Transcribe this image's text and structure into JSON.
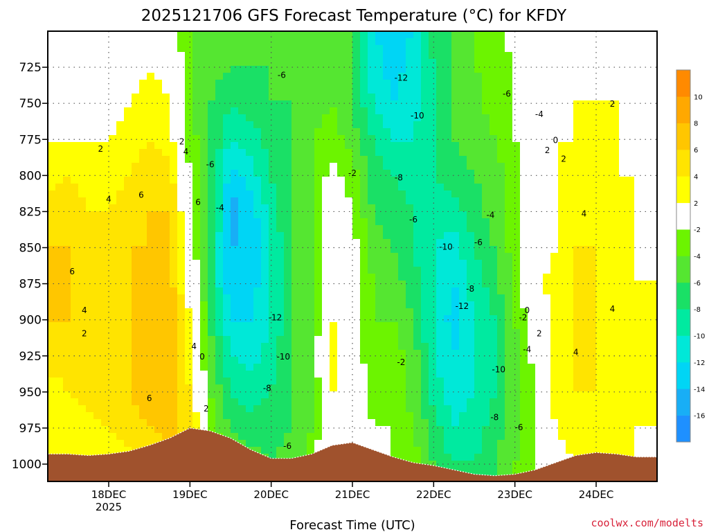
{
  "chart_data": {
    "type": "heatmap",
    "title": "2025121706 GFS Forecast Temperature (°C) for KFDY",
    "xlabel": "Forecast Time (UTC)",
    "ylabel": "",
    "credit": "coolwx.com/modelts",
    "x_ticks": [
      {
        "label": "18DEC",
        "sub": "2025",
        "day": 18
      },
      {
        "label": "19DEC",
        "sub": "",
        "day": 19
      },
      {
        "label": "20DEC",
        "sub": "",
        "day": 20
      },
      {
        "label": "21DEC",
        "sub": "",
        "day": 21
      },
      {
        "label": "22DEC",
        "sub": "",
        "day": 22
      },
      {
        "label": "23DEC",
        "sub": "",
        "day": 23
      },
      {
        "label": "24DEC",
        "sub": "",
        "day": 24
      }
    ],
    "xlim": [
      17.25,
      24.75
    ],
    "y_ticks": [
      725,
      750,
      775,
      800,
      825,
      850,
      875,
      900,
      925,
      950,
      975,
      1000
    ],
    "y_tick_labels": [
      "725",
      "750",
      "775",
      "800",
      "825",
      "850",
      "875",
      "900",
      "925",
      "950",
      "975",
      "1000"
    ],
    "ylim": [
      700,
      1012
    ],
    "y_reversed": true,
    "y_unit": "hPa",
    "grid": true,
    "colorbar": {
      "placement": "right",
      "boundaries": [
        -18,
        -16,
        -14,
        -12,
        -10,
        -8,
        -6,
        -4,
        -2,
        2,
        4,
        6,
        8,
        10,
        12
      ],
      "tick_labels": [
        "-16",
        "-14",
        "-12",
        "-10",
        "-8",
        "-6",
        "-4",
        "-2",
        "2",
        "4",
        "6",
        "8",
        "10"
      ],
      "colors": [
        "#1e90ff",
        "#18aef6",
        "#00d5f5",
        "#00e8d8",
        "#00eaa0",
        "#1ae066",
        "#55e631",
        "#6cf400",
        "#ffffff",
        "#ffff00",
        "#ffe400",
        "#ffc600",
        "#ffa800",
        "#ff8a00"
      ]
    },
    "levels": [
      1000,
      975,
      950,
      925,
      900,
      875,
      850,
      825,
      800,
      775,
      750,
      725,
      700
    ],
    "series": [
      {
        "x": 17.25,
        "values": [
          4,
          2,
          3,
          5,
          6,
          6,
          6,
          5,
          3,
          2,
          0,
          -1,
          -2
        ]
      },
      {
        "x": 17.5,
        "values": [
          3,
          2,
          4,
          5,
          6,
          6,
          6,
          5,
          4,
          2,
          1,
          0,
          -1
        ]
      },
      {
        "x": 17.75,
        "values": [
          2,
          3,
          5,
          6,
          5,
          5,
          4,
          4,
          3,
          2,
          1,
          0,
          -1
        ]
      },
      {
        "x": 18.0,
        "values": [
          3,
          4,
          6,
          5,
          5,
          5,
          4,
          4,
          3,
          2,
          1,
          0,
          0
        ]
      },
      {
        "x": 18.25,
        "values": [
          3,
          5,
          6,
          6,
          6,
          6,
          6,
          5,
          4,
          3,
          2,
          1,
          0
        ]
      },
      {
        "x": 18.5,
        "values": [
          4,
          6,
          7,
          7,
          7,
          7,
          6,
          6,
          5,
          4,
          3,
          2,
          1
        ]
      },
      {
        "x": 18.75,
        "values": [
          5,
          7,
          8,
          8,
          8,
          7,
          6,
          6,
          5,
          3,
          2,
          1,
          0
        ]
      },
      {
        "x": 19.0,
        "values": [
          6,
          5,
          4,
          3,
          2,
          1,
          0,
          -1,
          -2,
          -3,
          -4,
          -4,
          -4
        ]
      },
      {
        "x": 19.25,
        "values": [
          -1,
          -3,
          -4,
          -5,
          -6,
          -7,
          -7,
          -6,
          -6,
          -6,
          -6,
          -5,
          -5
        ]
      },
      {
        "x": 19.5,
        "values": [
          -4,
          -6,
          -8,
          -10,
          -12,
          -14,
          -14,
          -15,
          -13,
          -10,
          -8,
          -6,
          -5
        ]
      },
      {
        "x": 19.75,
        "values": [
          -5,
          -7,
          -9,
          -11,
          -12,
          -13,
          -14,
          -13,
          -11,
          -9,
          -7,
          -6,
          -5
        ]
      },
      {
        "x": 20.0,
        "values": [
          -6,
          -7,
          -8,
          -9,
          -10,
          -10,
          -10,
          -9,
          -8,
          -7,
          -6,
          -6,
          -5
        ]
      },
      {
        "x": 20.25,
        "values": [
          -5,
          -6,
          -6,
          -6,
          -6,
          -6,
          -6,
          -6,
          -6,
          -6,
          -6,
          -6,
          -6
        ]
      },
      {
        "x": 20.5,
        "values": [
          -3,
          -4,
          -4,
          -4,
          -4,
          -4,
          -4,
          -4,
          -4,
          -4,
          -5,
          -5,
          -5
        ]
      },
      {
        "x": 20.75,
        "values": [
          1,
          2,
          2,
          3,
          2,
          1,
          1,
          0,
          -1,
          -3,
          -4,
          -4,
          -5
        ]
      },
      {
        "x": 21.0,
        "values": [
          1,
          2,
          1,
          0,
          0,
          0,
          -1,
          -2,
          -3,
          -5,
          -6,
          -6,
          -6
        ]
      },
      {
        "x": 21.25,
        "values": [
          0,
          -2,
          -3,
          -4,
          -4,
          -4,
          -5,
          -6,
          -7,
          -8,
          -10,
          -11,
          -12
        ]
      },
      {
        "x": 21.5,
        "values": [
          -2,
          -2,
          -3,
          -3,
          -4,
          -5,
          -6,
          -7,
          -8,
          -10,
          -12,
          -13,
          -13
        ]
      },
      {
        "x": 21.75,
        "values": [
          -3,
          -4,
          -5,
          -5,
          -6,
          -7,
          -8,
          -8,
          -9,
          -10,
          -11,
          -11,
          -12
        ]
      },
      {
        "x": 22.0,
        "values": [
          -6,
          -7,
          -9,
          -10,
          -10,
          -10,
          -10,
          -9,
          -8,
          -8,
          -8,
          -8,
          -7
        ]
      },
      {
        "x": 22.25,
        "values": [
          -8,
          -10,
          -11,
          -12,
          -13,
          -12,
          -11,
          -9,
          -7,
          -6,
          -6,
          -6,
          -6
        ]
      },
      {
        "x": 22.5,
        "values": [
          -8,
          -9,
          -10,
          -10,
          -10,
          -9,
          -8,
          -7,
          -6,
          -5,
          -5,
          -4,
          -4
        ]
      },
      {
        "x": 22.75,
        "values": [
          -6,
          -7,
          -8,
          -8,
          -8,
          -7,
          -6,
          -5,
          -5,
          -4,
          -3,
          -3,
          -3
        ]
      },
      {
        "x": 23.0,
        "values": [
          -4,
          -5,
          -5,
          -5,
          -4,
          -3,
          -3,
          -3,
          -3,
          -2,
          -2,
          -2,
          -1
        ]
      },
      {
        "x": 23.25,
        "values": [
          -2,
          -2,
          -2,
          -1,
          0,
          1,
          1,
          0,
          0,
          0,
          0,
          0,
          0
        ]
      },
      {
        "x": 23.5,
        "values": [
          1,
          2,
          3,
          3,
          3,
          3,
          2,
          2,
          2,
          2,
          1,
          1,
          0
        ]
      },
      {
        "x": 23.75,
        "values": [
          2,
          3,
          4,
          4,
          4,
          4,
          4,
          3,
          3,
          2,
          2,
          1,
          0
        ]
      },
      {
        "x": 24.0,
        "values": [
          2,
          3,
          4,
          4,
          4,
          4,
          4,
          4,
          3,
          3,
          2,
          2,
          1
        ]
      },
      {
        "x": 24.25,
        "values": [
          2,
          3,
          3,
          3,
          3,
          3,
          3,
          3,
          2,
          2,
          2,
          1,
          0
        ]
      },
      {
        "x": 24.5,
        "values": [
          2,
          2,
          2,
          2,
          2,
          2,
          2,
          2,
          2,
          1,
          1,
          0,
          -1
        ]
      },
      {
        "x": 24.75,
        "values": [
          1,
          2,
          2,
          2,
          2,
          2,
          1,
          1,
          1,
          1,
          0,
          0,
          -1
        ]
      }
    ],
    "surface_pressure": [
      {
        "x": 17.25,
        "p": 993
      },
      {
        "x": 17.5,
        "p": 993
      },
      {
        "x": 17.75,
        "p": 994
      },
      {
        "x": 18.0,
        "p": 993
      },
      {
        "x": 18.25,
        "p": 991
      },
      {
        "x": 18.5,
        "p": 987
      },
      {
        "x": 18.75,
        "p": 982
      },
      {
        "x": 19.0,
        "p": 975
      },
      {
        "x": 19.25,
        "p": 977
      },
      {
        "x": 19.5,
        "p": 982
      },
      {
        "x": 19.75,
        "p": 990
      },
      {
        "x": 20.0,
        "p": 996
      },
      {
        "x": 20.25,
        "p": 996
      },
      {
        "x": 20.5,
        "p": 993
      },
      {
        "x": 20.75,
        "p": 987
      },
      {
        "x": 21.0,
        "p": 985
      },
      {
        "x": 21.25,
        "p": 990
      },
      {
        "x": 21.5,
        "p": 995
      },
      {
        "x": 21.75,
        "p": 999
      },
      {
        "x": 22.0,
        "p": 1001
      },
      {
        "x": 22.25,
        "p": 1004
      },
      {
        "x": 22.5,
        "p": 1007
      },
      {
        "x": 22.75,
        "p": 1008
      },
      {
        "x": 23.0,
        "p": 1007
      },
      {
        "x": 23.25,
        "p": 1004
      },
      {
        "x": 23.5,
        "p": 999
      },
      {
        "x": 23.75,
        "p": 994
      },
      {
        "x": 24.0,
        "p": 992
      },
      {
        "x": 24.25,
        "p": 993
      },
      {
        "x": 24.5,
        "p": 995
      },
      {
        "x": 24.75,
        "p": 995
      }
    ],
    "contour_labels": [
      {
        "text": "-6",
        "x": 20.13,
        "p": 730
      },
      {
        "text": "-12",
        "x": 21.6,
        "p": 732
      },
      {
        "text": "-6",
        "x": 22.9,
        "p": 743
      },
      {
        "text": "2",
        "x": 24.2,
        "p": 750
      },
      {
        "text": "-4",
        "x": 23.3,
        "p": 757
      },
      {
        "text": "-10",
        "x": 21.8,
        "p": 758
      },
      {
        "text": "2",
        "x": 17.9,
        "p": 781
      },
      {
        "text": "2",
        "x": 18.9,
        "p": 776
      },
      {
        "text": "4",
        "x": 18.95,
        "p": 783
      },
      {
        "text": "0",
        "x": 23.5,
        "p": 775
      },
      {
        "text": "2",
        "x": 23.4,
        "p": 782
      },
      {
        "text": "2",
        "x": 23.6,
        "p": 788
      },
      {
        "text": "-6",
        "x": 19.25,
        "p": 792
      },
      {
        "text": "-2",
        "x": 21.0,
        "p": 798
      },
      {
        "text": "-8",
        "x": 21.57,
        "p": 801
      },
      {
        "text": "4",
        "x": 18.0,
        "p": 816
      },
      {
        "text": "6",
        "x": 18.4,
        "p": 813
      },
      {
        "text": "6",
        "x": 19.1,
        "p": 818
      },
      {
        "text": "-4",
        "x": 19.37,
        "p": 822
      },
      {
        "text": "-4",
        "x": 22.7,
        "p": 827
      },
      {
        "text": "4",
        "x": 23.85,
        "p": 826
      },
      {
        "text": "-6",
        "x": 21.75,
        "p": 830
      },
      {
        "text": "-6",
        "x": 22.55,
        "p": 846
      },
      {
        "text": "-10",
        "x": 22.15,
        "p": 849
      },
      {
        "text": "6",
        "x": 17.55,
        "p": 866
      },
      {
        "text": "-8",
        "x": 22.45,
        "p": 878
      },
      {
        "text": "4",
        "x": 17.7,
        "p": 893
      },
      {
        "text": "-12",
        "x": 22.35,
        "p": 890
      },
      {
        "text": "-12",
        "x": 20.05,
        "p": 898
      },
      {
        "text": "0",
        "x": 23.15,
        "p": 893
      },
      {
        "text": "-2",
        "x": 23.1,
        "p": 898
      },
      {
        "text": "4",
        "x": 24.2,
        "p": 892
      },
      {
        "text": "2",
        "x": 17.7,
        "p": 909
      },
      {
        "text": "2",
        "x": 23.3,
        "p": 909
      },
      {
        "text": "4",
        "x": 19.05,
        "p": 918
      },
      {
        "text": "-4",
        "x": 23.15,
        "p": 920
      },
      {
        "text": "4",
        "x": 23.75,
        "p": 922
      },
      {
        "text": "0",
        "x": 19.15,
        "p": 925
      },
      {
        "text": "-10",
        "x": 20.15,
        "p": 925
      },
      {
        "text": "-2",
        "x": 21.6,
        "p": 929
      },
      {
        "text": "-10",
        "x": 22.8,
        "p": 934
      },
      {
        "text": "-8",
        "x": 19.95,
        "p": 947
      },
      {
        "text": "6",
        "x": 18.5,
        "p": 954
      },
      {
        "text": "2",
        "x": 19.2,
        "p": 961
      },
      {
        "text": "-8",
        "x": 22.75,
        "p": 967
      },
      {
        "text": "-6",
        "x": 23.05,
        "p": 974
      },
      {
        "text": "-6",
        "x": 20.2,
        "p": 987
      }
    ]
  }
}
